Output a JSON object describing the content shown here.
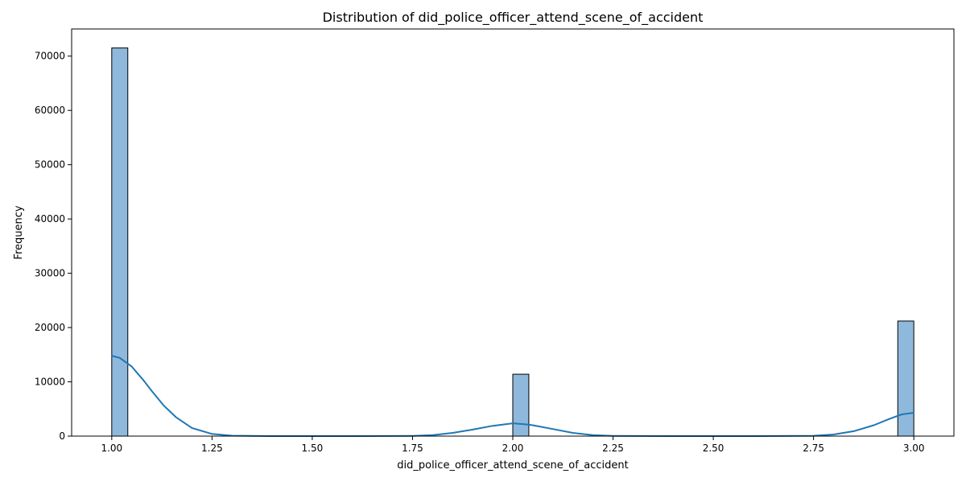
{
  "chart_data": {
    "type": "bar",
    "subtype": "histogram_with_kde",
    "title": "Distribution of did_police_officer_attend_scene_of_accident",
    "xlabel": "did_police_officer_attend_scene_of_accident",
    "ylabel": "Frequency",
    "xlim": [
      0.9,
      3.1
    ],
    "ylim": [
      0,
      75000
    ],
    "xticks": [
      1.0,
      1.25,
      1.5,
      1.75,
      2.0,
      2.25,
      2.5,
      2.75,
      3.0
    ],
    "xtick_labels": [
      "1.00",
      "1.25",
      "1.50",
      "1.75",
      "2.00",
      "2.25",
      "2.50",
      "2.75",
      "3.00"
    ],
    "yticks": [
      0,
      10000,
      20000,
      30000,
      40000,
      50000,
      60000,
      70000
    ],
    "ytick_labels": [
      "0",
      "10000",
      "20000",
      "30000",
      "40000",
      "50000",
      "60000",
      "70000"
    ],
    "bin_width": 0.04,
    "bars": [
      {
        "x_start": 1.0,
        "x_end": 1.04,
        "value": 71500
      },
      {
        "x_start": 2.0,
        "x_end": 2.04,
        "value": 11400
      },
      {
        "x_start": 2.96,
        "x_end": 3.0,
        "value": 21200
      }
    ],
    "kde_line": {
      "x": [
        1.0,
        1.02,
        1.05,
        1.08,
        1.1,
        1.13,
        1.16,
        1.2,
        1.25,
        1.3,
        1.4,
        1.6,
        1.75,
        1.8,
        1.85,
        1.9,
        1.95,
        2.0,
        2.03,
        2.05,
        2.1,
        2.15,
        2.2,
        2.25,
        2.4,
        2.6,
        2.75,
        2.8,
        2.85,
        2.9,
        2.94,
        2.97,
        3.0
      ],
      "y": [
        14800,
        14400,
        12800,
        10200,
        8300,
        5600,
        3500,
        1500,
        400,
        80,
        0,
        0,
        50,
        200,
        600,
        1200,
        1900,
        2350,
        2200,
        2000,
        1300,
        600,
        200,
        50,
        0,
        0,
        60,
        300,
        900,
        2000,
        3200,
        4000,
        4300
      ]
    },
    "colors": {
      "bar_fill": "#8fb9dc",
      "bar_edge": "#000000",
      "kde_line": "#1f77b4",
      "axes": "#000000"
    },
    "grid": false,
    "legend": "none"
  }
}
